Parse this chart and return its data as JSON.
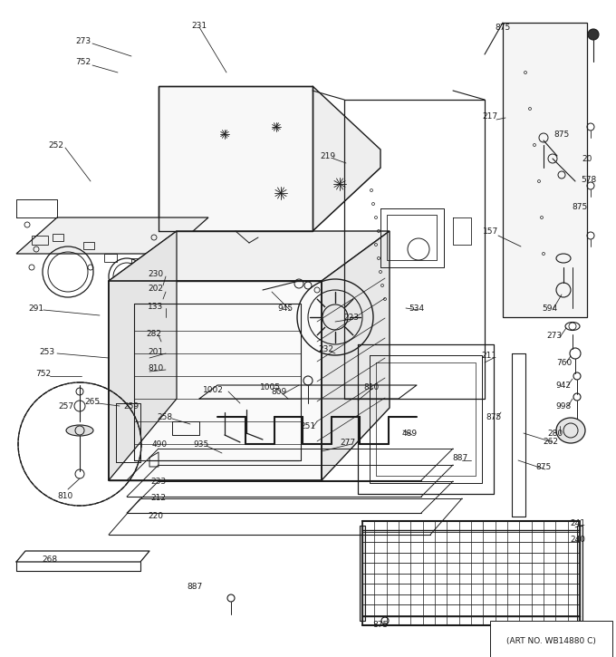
{
  "bg_color": "#ffffff",
  "line_color": "#1a1a1a",
  "art_no": "(ART NO. WB14880 C)",
  "fig_width": 6.8,
  "fig_height": 7.25,
  "dpi": 100
}
